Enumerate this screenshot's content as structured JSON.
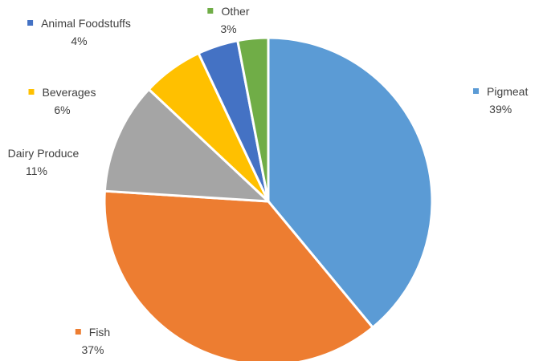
{
  "chart_data": {
    "type": "pie",
    "title": "",
    "slices": [
      {
        "label": "Pigmeat",
        "value": 39,
        "display": "39%",
        "color": "#5b9bd5"
      },
      {
        "label": "Fish",
        "value": 37,
        "display": "37%",
        "color": "#ed7d31"
      },
      {
        "label": "Dairy Produce",
        "value": 11,
        "display": "11%",
        "color": "#a5a5a5"
      },
      {
        "label": "Beverages",
        "value": 6,
        "display": "6%",
        "color": "#ffc000"
      },
      {
        "label": "Animal Foodstuffs",
        "value": 4,
        "display": "4%",
        "color": "#4472c4"
      },
      {
        "label": "Other",
        "value": 3,
        "display": "3%",
        "color": "#70ad47"
      }
    ],
    "start_angle_deg": 0,
    "direction": "clockwise",
    "legend": "none",
    "data_labels": "outside-with-category-and-percent"
  }
}
